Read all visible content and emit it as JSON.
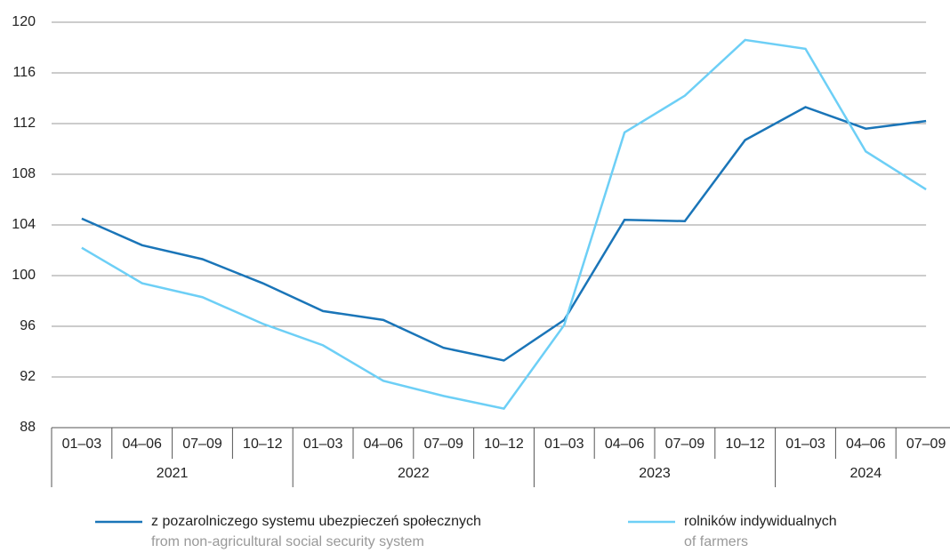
{
  "chart_data": {
    "type": "line",
    "categories": [
      "01–03",
      "04–06",
      "07–09",
      "10–12",
      "01–03",
      "04–06",
      "07–09",
      "10–12",
      "01–03",
      "04–06",
      "07–09",
      "10–12",
      "01–03",
      "04–06",
      "07–09"
    ],
    "year_labels": [
      "2021",
      "2022",
      "2023",
      "2024"
    ],
    "series": [
      {
        "name": "z pozarolniczego systemu ubezpieczeń społecznych",
        "name_en": "from non-agricultural social security system",
        "color": "#1a75b8",
        "values": [
          104.5,
          102.4,
          101.3,
          99.4,
          97.2,
          96.5,
          94.3,
          93.3,
          96.5,
          104.4,
          104.3,
          110.7,
          113.3,
          111.6,
          112.2
        ]
      },
      {
        "name": "rolników indywidualnych",
        "name_en": "of farmers",
        "color": "#6dcff6",
        "values": [
          102.2,
          99.4,
          98.3,
          96.2,
          94.5,
          91.7,
          90.5,
          89.5,
          96.1,
          111.3,
          114.2,
          118.6,
          117.9,
          109.8,
          106.8
        ]
      }
    ],
    "ylim": [
      88,
      120
    ],
    "yticks": [
      88,
      92,
      96,
      100,
      104,
      108,
      112,
      116,
      120
    ],
    "grid": true
  }
}
